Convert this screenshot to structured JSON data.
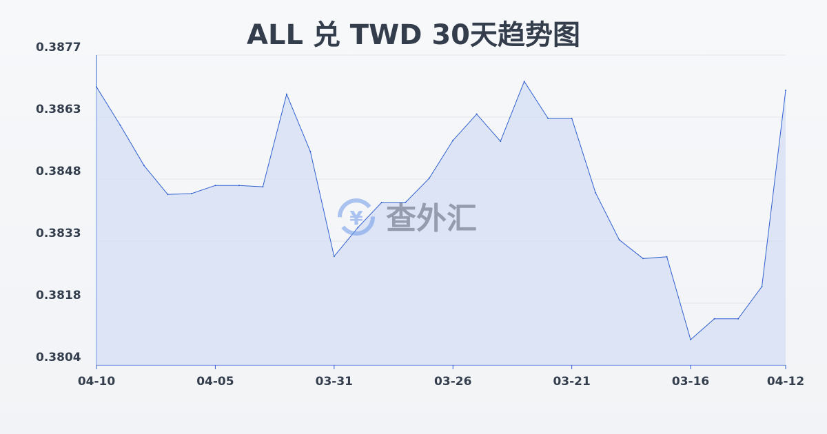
{
  "chart_data": {
    "type": "area",
    "title": "ALL 兑 TWD 30天趋势图",
    "xlabel": "",
    "ylabel": "",
    "x": [
      "04-10",
      "04-09",
      "04-08",
      "04-07",
      "04-06",
      "04-05",
      "04-04",
      "04-03",
      "04-02",
      "04-01",
      "03-31",
      "03-30",
      "03-29",
      "03-28",
      "03-27",
      "03-26",
      "03-25",
      "03-24",
      "03-23",
      "03-22",
      "03-21",
      "03-20",
      "03-19",
      "03-18",
      "03-17",
      "03-16",
      "03-15",
      "03-14",
      "03-13",
      "04-12"
    ],
    "x_tick_labels": [
      "04-10",
      "04-05",
      "03-31",
      "03-26",
      "03-21",
      "03-16",
      "04-12"
    ],
    "values": [
      0.38695,
      0.38605,
      0.3851,
      0.38442,
      0.38444,
      0.38463,
      0.38463,
      0.3846,
      0.38678,
      0.38543,
      0.38296,
      0.38364,
      0.38423,
      0.38423,
      0.3848,
      0.38569,
      0.38631,
      0.38567,
      0.38708,
      0.38621,
      0.38621,
      0.38446,
      0.38335,
      0.38291,
      0.38295,
      0.381,
      0.38149,
      0.38149,
      0.38225,
      0.38687
    ],
    "y_tick_labels": [
      "0.3877",
      "0.3863",
      "0.3848",
      "0.3833",
      "0.3818",
      "0.3804"
    ],
    "ylim": [
      0.3804,
      0.3877
    ],
    "grid": true,
    "colors": {
      "line": "#2f5fcf",
      "fill": "#d6e0f5",
      "grid": "#e3e6ea",
      "text": "#333d4c"
    }
  },
  "watermark": {
    "text": "查外汇",
    "icon": "yen-exchange-icon"
  }
}
